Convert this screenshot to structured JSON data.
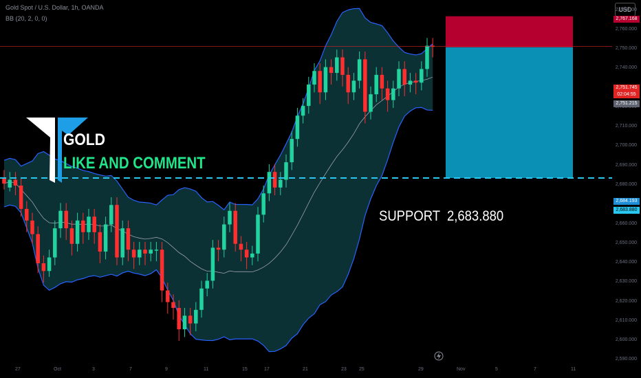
{
  "header": {
    "symbol_line": "Gold Spot / U.S. Dollar, 1h, OANDA",
    "indicator_line": "BB (20, 2, 0, 0)"
  },
  "currency": "USD",
  "logo_text": "GOLD",
  "call_to_action": "LIKE AND COMMENT",
  "support_label": "SUPPORT",
  "support_value": "2,683.880",
  "price_labels": {
    "top": "2,767.168",
    "current": "2,751.745",
    "countdown": "02:04:55",
    "entry": "2,751.215",
    "support_upper": "2,684.193",
    "support": "2,683.880"
  },
  "colors": {
    "bull": "#22d3a0",
    "bear": "#ff2f2f",
    "band_fill": "#0d3a3d",
    "band_line": "#2962ff",
    "stop_zone": "#b5002f",
    "target_zone": "#0a8fb5",
    "support_line": "#29c8f0"
  },
  "chart_data": {
    "type": "candlestick",
    "timeframe": "1h",
    "y_axis": {
      "ticks": [
        "2,770.000",
        "2,760.000",
        "2,750.000",
        "2,740.000",
        "2,730.000",
        "2,720.000",
        "2,710.000",
        "2,700.000",
        "2,690.000",
        "2,680.000",
        "2,670.000",
        "2,660.000",
        "2,650.000",
        "2,640.000",
        "2,630.000",
        "2,620.000",
        "2,610.000",
        "2,600.000",
        "2,590.000"
      ],
      "ylim": [
        2588,
        2772
      ]
    },
    "x_axis": {
      "ticks": [
        "27",
        "Oct",
        "3",
        "7",
        "9",
        "11",
        "15",
        "17",
        "21",
        "23",
        "25",
        "29",
        "Nov",
        "5",
        "7",
        "11"
      ]
    },
    "levels": {
      "support": 2683.88,
      "entry": 2751.215,
      "stop": 2767.168
    },
    "candles": [
      [
        2684.0,
        2681.0,
        2678.0
      ],
      [
        2679.0,
        2683.0,
        2677.0
      ],
      [
        2683.0,
        2680.0,
        2675.0
      ],
      [
        2680.0,
        2668.0,
        2664.0
      ],
      [
        2668.0,
        2662.0,
        2656.0
      ],
      [
        2662.0,
        2655.0,
        2650.0
      ],
      [
        2655.0,
        2640.0,
        2635.0
      ],
      [
        2640.0,
        2636.0,
        2630.0
      ],
      [
        2636.0,
        2643.0,
        2633.0
      ],
      [
        2643.0,
        2658.0,
        2639.0
      ],
      [
        2658.0,
        2667.0,
        2653.0
      ],
      [
        2667.0,
        2658.0,
        2652.0
      ],
      [
        2658.0,
        2650.0,
        2644.0
      ],
      [
        2650.0,
        2662.0,
        2646.0
      ],
      [
        2662.0,
        2656.0,
        2650.0
      ],
      [
        2656.0,
        2664.0,
        2652.0
      ],
      [
        2664.0,
        2656.0,
        2650.0
      ],
      [
        2656.0,
        2646.0,
        2640.0
      ],
      [
        2646.0,
        2660.0,
        2642.0
      ],
      [
        2660.0,
        2670.0,
        2656.0
      ],
      [
        2670.0,
        2643.0,
        2639.0
      ],
      [
        2643.0,
        2658.0,
        2639.0
      ],
      [
        2658.0,
        2647.0,
        2641.0
      ],
      [
        2647.0,
        2643.0,
        2637.0
      ],
      [
        2643.0,
        2647.0,
        2639.0
      ],
      [
        2647.0,
        2645.0,
        2639.0
      ],
      [
        2645.0,
        2647.0,
        2641.0
      ],
      [
        2647.0,
        2647.0,
        2641.0
      ],
      [
        2647.0,
        2626.0,
        2620.0
      ],
      [
        2626.0,
        2620.0,
        2614.0
      ],
      [
        2620.0,
        2617.0,
        2611.0
      ],
      [
        2617.0,
        2606.0,
        2600.0
      ],
      [
        2606.0,
        2613.0,
        2602.0
      ],
      [
        2613.0,
        2609.0,
        2603.0
      ],
      [
        2609.0,
        2616.0,
        2605.0
      ],
      [
        2616.0,
        2627.0,
        2612.0
      ],
      [
        2627.0,
        2631.0,
        2623.0
      ],
      [
        2631.0,
        2648.0,
        2627.0
      ],
      [
        2648.0,
        2647.0,
        2641.0
      ],
      [
        2647.0,
        2660.0,
        2643.0
      ],
      [
        2660.0,
        2667.0,
        2656.0
      ],
      [
        2667.0,
        2650.0,
        2646.0
      ],
      [
        2650.0,
        2647.0,
        2641.0
      ],
      [
        2647.0,
        2643.0,
        2637.0
      ],
      [
        2643.0,
        2645.0,
        2639.0
      ],
      [
        2645.0,
        2665.0,
        2641.0
      ],
      [
        2665.0,
        2676.0,
        2661.0
      ],
      [
        2676.0,
        2687.0,
        2672.0
      ],
      [
        2687.0,
        2679.0,
        2675.0
      ],
      [
        2679.0,
        2683.0,
        2675.0
      ],
      [
        2683.0,
        2692.0,
        2679.0
      ],
      [
        2692.0,
        2704.0,
        2688.0
      ],
      [
        2704.0,
        2716.0,
        2700.0
      ],
      [
        2716.0,
        2721.0,
        2712.0
      ],
      [
        2721.0,
        2732.0,
        2717.0
      ],
      [
        2732.0,
        2739.0,
        2728.0
      ],
      [
        2739.0,
        2728.0,
        2722.0
      ],
      [
        2728.0,
        2741.0,
        2724.0
      ],
      [
        2741.0,
        2738.0,
        2732.0
      ],
      [
        2738.0,
        2746.0,
        2734.0
      ],
      [
        2746.0,
        2737.0,
        2731.0
      ],
      [
        2737.0,
        2728.0,
        2722.0
      ],
      [
        2728.0,
        2734.0,
        2724.0
      ],
      [
        2734.0,
        2745.0,
        2730.0
      ],
      [
        2745.0,
        2718.0,
        2712.0
      ],
      [
        2718.0,
        2727.0,
        2714.0
      ],
      [
        2727.0,
        2737.0,
        2723.0
      ],
      [
        2737.0,
        2730.0,
        2724.0
      ],
      [
        2730.0,
        2724.0,
        2718.0
      ],
      [
        2724.0,
        2730.0,
        2720.0
      ],
      [
        2730.0,
        2740.0,
        2726.0
      ],
      [
        2740.0,
        2732.0,
        2726.0
      ],
      [
        2732.0,
        2734.0,
        2728.0
      ],
      [
        2734.0,
        2733.0,
        2727.0
      ],
      [
        2733.0,
        2740.0,
        2729.0
      ],
      [
        2740.0,
        2752.0,
        2736.0
      ],
      [
        2752.0,
        2751.7,
        2746.0
      ]
    ],
    "candle_fields": [
      "open",
      "close",
      "low"
    ]
  }
}
